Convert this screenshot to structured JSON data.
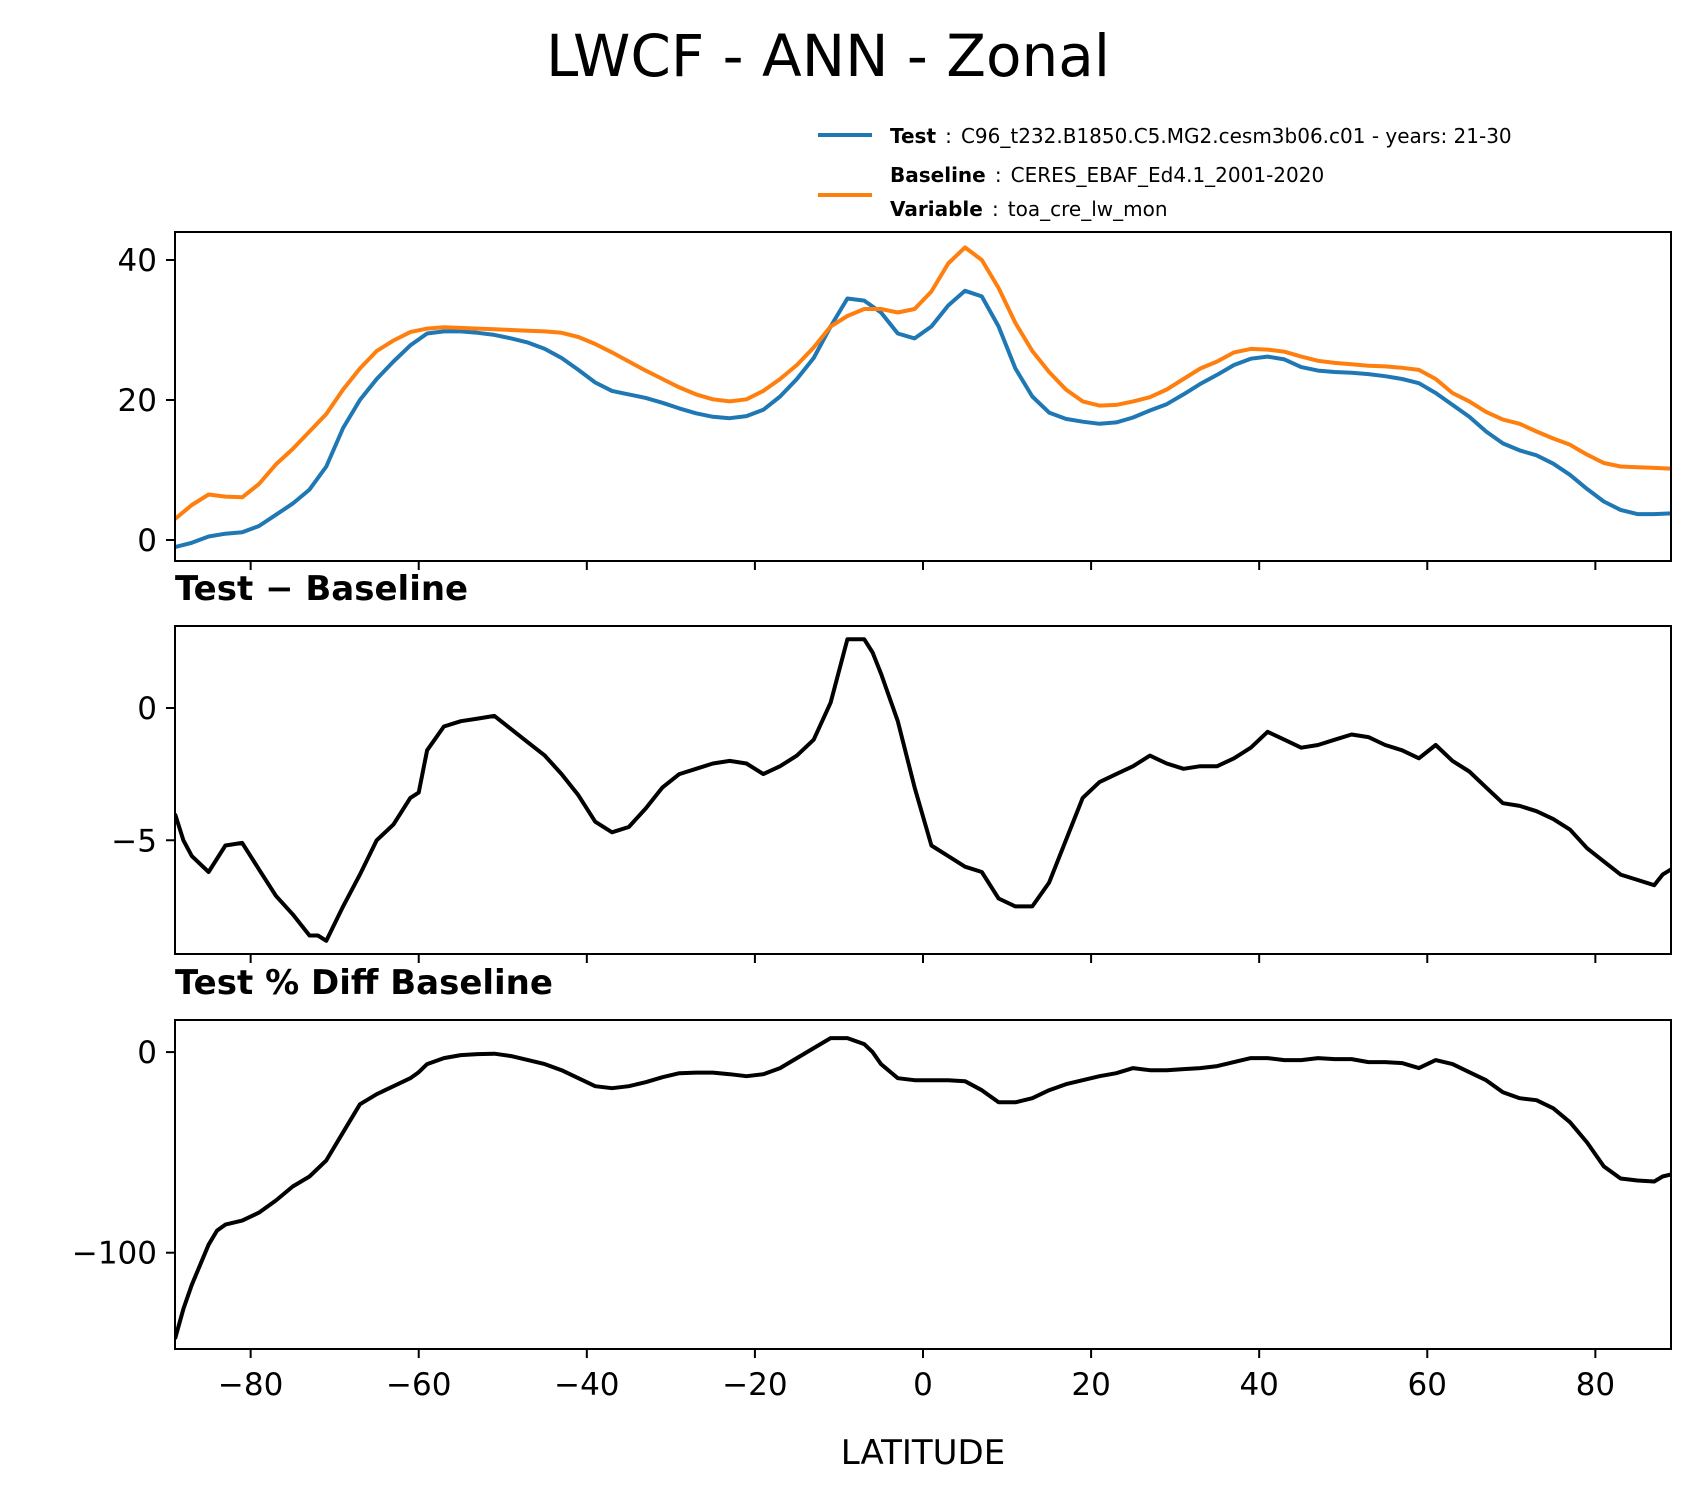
{
  "title": "LWCF - ANN - Zonal",
  "legend": {
    "test_key": "Test",
    "test_value": "C96_t232.B1850.C5.MG2.cesm3b06.c01 - years: 21-30",
    "baseline_key": "Baseline",
    "baseline_value": "CERES_EBAF_Ed4.1_2001-2020",
    "variable_key": "Variable",
    "variable_value": "toa_cre_lw_mon",
    "sep": ":"
  },
  "colors": {
    "test": "#1f77b4",
    "baseline": "#ff7f0e",
    "diff": "#000000"
  },
  "chart_data": [
    {
      "type": "line",
      "panel": "top",
      "title": "",
      "xlabel": "",
      "ylabel": "",
      "xlim": [
        -89,
        89
      ],
      "ylim": [
        -3,
        44
      ],
      "yticks": [
        0,
        20,
        40
      ],
      "ytick_labels": [
        "0",
        "20",
        "40"
      ],
      "xticks": [
        -80,
        -60,
        -40,
        -20,
        0,
        20,
        40,
        60,
        80
      ],
      "grid": false,
      "legend_position": "above",
      "series": [
        {
          "name": "Test",
          "color": "#1f77b4",
          "x": [
            -89,
            -87,
            -85,
            -83,
            -81,
            -79,
            -77,
            -75,
            -73,
            -71,
            -69,
            -67,
            -65,
            -63,
            -61,
            -59,
            -57,
            -55,
            -53,
            -51,
            -49,
            -47,
            -45,
            -43,
            -41,
            -39,
            -37,
            -35,
            -33,
            -31,
            -29,
            -27,
            -25,
            -23,
            -21,
            -19,
            -17,
            -15,
            -13,
            -11,
            -9,
            -7,
            -5,
            -3,
            -1,
            1,
            3,
            5,
            7,
            9,
            11,
            13,
            15,
            17,
            19,
            21,
            23,
            25,
            27,
            29,
            31,
            33,
            35,
            37,
            39,
            41,
            43,
            45,
            47,
            49,
            51,
            53,
            55,
            57,
            59,
            61,
            63,
            65,
            67,
            69,
            71,
            73,
            75,
            77,
            79,
            81,
            83,
            85,
            87,
            89
          ],
          "y": [
            -1.0,
            -0.4,
            0.5,
            0.9,
            1.1,
            2.0,
            3.6,
            5.2,
            7.2,
            10.5,
            16.0,
            20.0,
            23.0,
            25.5,
            27.8,
            29.5,
            29.8,
            29.8,
            29.6,
            29.3,
            28.8,
            28.2,
            27.3,
            26.0,
            24.3,
            22.5,
            21.3,
            20.8,
            20.3,
            19.6,
            18.8,
            18.1,
            17.6,
            17.4,
            17.7,
            18.6,
            20.5,
            23.0,
            26.0,
            30.5,
            34.5,
            34.2,
            32.5,
            29.5,
            28.8,
            30.5,
            33.5,
            35.6,
            34.8,
            30.5,
            24.5,
            20.5,
            18.2,
            17.3,
            16.9,
            16.6,
            16.8,
            17.5,
            18.5,
            19.4,
            20.8,
            22.3,
            23.6,
            25.0,
            25.9,
            26.2,
            25.8,
            24.7,
            24.2,
            24.0,
            23.9,
            23.7,
            23.4,
            23.0,
            22.4,
            21.0,
            19.3,
            17.6,
            15.5,
            13.8,
            12.8,
            12.1,
            10.9,
            9.3,
            7.3,
            5.5,
            4.3,
            3.7,
            3.7,
            3.8
          ]
        },
        {
          "name": "Baseline",
          "color": "#ff7f0e",
          "x": [
            -89,
            -87,
            -85,
            -83,
            -81,
            -79,
            -77,
            -75,
            -73,
            -71,
            -69,
            -67,
            -65,
            -63,
            -61,
            -59,
            -57,
            -55,
            -53,
            -51,
            -49,
            -47,
            -45,
            -43,
            -41,
            -39,
            -37,
            -35,
            -33,
            -31,
            -29,
            -27,
            -25,
            -23,
            -21,
            -19,
            -17,
            -15,
            -13,
            -11,
            -9,
            -7,
            -5,
            -3,
            -1,
            1,
            3,
            5,
            7,
            9,
            11,
            13,
            15,
            17,
            19,
            21,
            23,
            25,
            27,
            29,
            31,
            33,
            35,
            37,
            39,
            41,
            43,
            45,
            47,
            49,
            51,
            53,
            55,
            57,
            59,
            61,
            63,
            65,
            67,
            69,
            71,
            73,
            75,
            77,
            79,
            81,
            83,
            85,
            87,
            89
          ],
          "y": [
            3.0,
            5.0,
            6.5,
            6.2,
            6.1,
            8.0,
            10.8,
            13.0,
            15.5,
            18.0,
            21.5,
            24.5,
            27.0,
            28.5,
            29.7,
            30.2,
            30.4,
            30.3,
            30.2,
            30.1,
            30.0,
            29.9,
            29.8,
            29.6,
            29.0,
            28.0,
            26.8,
            25.5,
            24.2,
            23.0,
            21.8,
            20.8,
            20.1,
            19.8,
            20.1,
            21.3,
            23.0,
            25.0,
            27.5,
            30.5,
            32.0,
            33.0,
            33.0,
            32.5,
            33.0,
            35.5,
            39.5,
            41.8,
            40.0,
            36.0,
            31.0,
            27.0,
            24.0,
            21.5,
            19.8,
            19.2,
            19.3,
            19.8,
            20.4,
            21.5,
            23.0,
            24.5,
            25.5,
            26.8,
            27.3,
            27.2,
            26.9,
            26.2,
            25.6,
            25.3,
            25.1,
            24.9,
            24.8,
            24.6,
            24.3,
            23.0,
            21.0,
            19.8,
            18.3,
            17.2,
            16.6,
            15.5,
            14.5,
            13.6,
            12.2,
            11.0,
            10.5,
            10.4,
            10.3,
            10.2
          ]
        }
      ]
    },
    {
      "type": "line",
      "panel": "middle",
      "title": "Test − Baseline",
      "xlabel": "",
      "ylabel": "",
      "xlim": [
        -89,
        89
      ],
      "ylim": [
        -9.3,
        3.1
      ],
      "yticks": [
        0,
        -5
      ],
      "ytick_labels": [
        "0",
        "−5"
      ],
      "xticks": [
        -80,
        -60,
        -40,
        -20,
        0,
        20,
        40,
        60,
        80
      ],
      "grid": false,
      "series": [
        {
          "name": "",
          "color": "#000000",
          "x": [
            -89,
            -88,
            -87,
            -85,
            -83,
            -81,
            -79,
            -77,
            -75,
            -73,
            -72,
            -71,
            -69,
            -67,
            -65,
            -63,
            -61,
            -60,
            -59,
            -57,
            -55,
            -53,
            -51,
            -49,
            -47,
            -45,
            -43,
            -41,
            -39,
            -37,
            -35,
            -33,
            -31,
            -29,
            -27,
            -25,
            -23,
            -21,
            -19,
            -17,
            -15,
            -13,
            -11,
            -9,
            -7,
            -6,
            -5,
            -3,
            -1,
            1,
            3,
            5,
            7,
            9,
            11,
            13,
            15,
            17,
            19,
            21,
            23,
            25,
            27,
            29,
            31,
            33,
            35,
            37,
            39,
            41,
            43,
            45,
            47,
            49,
            51,
            53,
            55,
            57,
            59,
            61,
            63,
            65,
            67,
            69,
            71,
            73,
            75,
            77,
            79,
            81,
            83,
            85,
            87,
            88,
            89
          ],
          "y": [
            -4.0,
            -5.0,
            -5.6,
            -6.2,
            -5.2,
            -5.1,
            -6.1,
            -7.1,
            -7.8,
            -8.6,
            -8.6,
            -8.8,
            -7.5,
            -6.3,
            -5.0,
            -4.4,
            -3.4,
            -3.2,
            -1.6,
            -0.7,
            -0.5,
            -0.4,
            -0.3,
            -0.8,
            -1.3,
            -1.8,
            -2.5,
            -3.3,
            -4.3,
            -4.7,
            -4.5,
            -3.8,
            -3.0,
            -2.5,
            -2.3,
            -2.1,
            -2.0,
            -2.1,
            -2.5,
            -2.2,
            -1.8,
            -1.2,
            0.2,
            2.6,
            2.6,
            2.1,
            1.3,
            -0.5,
            -3.0,
            -5.2,
            -5.6,
            -6.0,
            -6.2,
            -7.2,
            -7.5,
            -7.5,
            -6.6,
            -5.0,
            -3.4,
            -2.8,
            -2.5,
            -2.2,
            -1.8,
            -2.1,
            -2.3,
            -2.2,
            -2.2,
            -1.9,
            -1.5,
            -0.9,
            -1.2,
            -1.5,
            -1.4,
            -1.2,
            -1.0,
            -1.1,
            -1.4,
            -1.6,
            -1.9,
            -1.4,
            -2.0,
            -2.4,
            -3.0,
            -3.6,
            -3.7,
            -3.9,
            -4.2,
            -4.6,
            -5.3,
            -5.8,
            -6.3,
            -6.5,
            -6.7,
            -6.3,
            -6.1
          ]
        }
      ]
    },
    {
      "type": "line",
      "panel": "bottom",
      "title": "Test % Diff Baseline",
      "xlabel": "LATITUDE",
      "ylabel": "",
      "xlim": [
        -89,
        89
      ],
      "ylim": [
        -148,
        16
      ],
      "yticks": [
        0,
        -100
      ],
      "ytick_labels": [
        "0",
        "−100"
      ],
      "xticks": [
        -80,
        -60,
        -40,
        -20,
        0,
        20,
        40,
        60,
        80
      ],
      "xtick_labels": [
        "−80",
        "−60",
        "−40",
        "−20",
        "0",
        "20",
        "40",
        "60",
        "80"
      ],
      "grid": false,
      "series": [
        {
          "name": "",
          "color": "#000000",
          "x": [
            -89,
            -88,
            -87,
            -85,
            -84,
            -83,
            -81,
            -79,
            -77,
            -75,
            -73,
            -71,
            -69,
            -67,
            -65,
            -63,
            -61,
            -60,
            -59,
            -57,
            -55,
            -53,
            -51,
            -49,
            -47,
            -45,
            -43,
            -41,
            -39,
            -37,
            -35,
            -33,
            -31,
            -29,
            -27,
            -25,
            -23,
            -21,
            -19,
            -17,
            -15,
            -13,
            -11,
            -9,
            -7,
            -6,
            -5,
            -3,
            -1,
            1,
            3,
            5,
            7,
            9,
            11,
            13,
            15,
            17,
            19,
            21,
            23,
            25,
            27,
            29,
            31,
            33,
            35,
            37,
            39,
            41,
            43,
            45,
            47,
            49,
            51,
            53,
            55,
            57,
            59,
            61,
            63,
            65,
            67,
            69,
            71,
            73,
            75,
            77,
            79,
            81,
            83,
            85,
            87,
            88,
            89
          ],
          "y": [
            -143,
            -128,
            -116,
            -96,
            -89,
            -86,
            -84,
            -80,
            -74,
            -67,
            -62,
            -54,
            -40,
            -26,
            -21,
            -17,
            -13,
            -10,
            -6,
            -3,
            -1.5,
            -1,
            -0.8,
            -2,
            -4,
            -6,
            -9,
            -13,
            -17,
            -18,
            -17,
            -15,
            -12.5,
            -10.5,
            -10.2,
            -10.2,
            -11,
            -12,
            -11,
            -8,
            -3,
            2,
            7,
            7,
            4,
            0,
            -6,
            -13,
            -14,
            -14,
            -14,
            -14.5,
            -19,
            -25,
            -25,
            -23,
            -19,
            -16,
            -14,
            -12,
            -10.5,
            -8,
            -9,
            -9,
            -8.5,
            -8,
            -7,
            -5,
            -3,
            -3,
            -4,
            -4,
            -3,
            -3.5,
            -3.5,
            -5,
            -5,
            -5.5,
            -8,
            -4,
            -6,
            -10,
            -14,
            -20,
            -23,
            -24,
            -28,
            -35,
            -45,
            -57,
            -63,
            -64,
            -64.5,
            -62,
            -61
          ]
        }
      ]
    }
  ]
}
